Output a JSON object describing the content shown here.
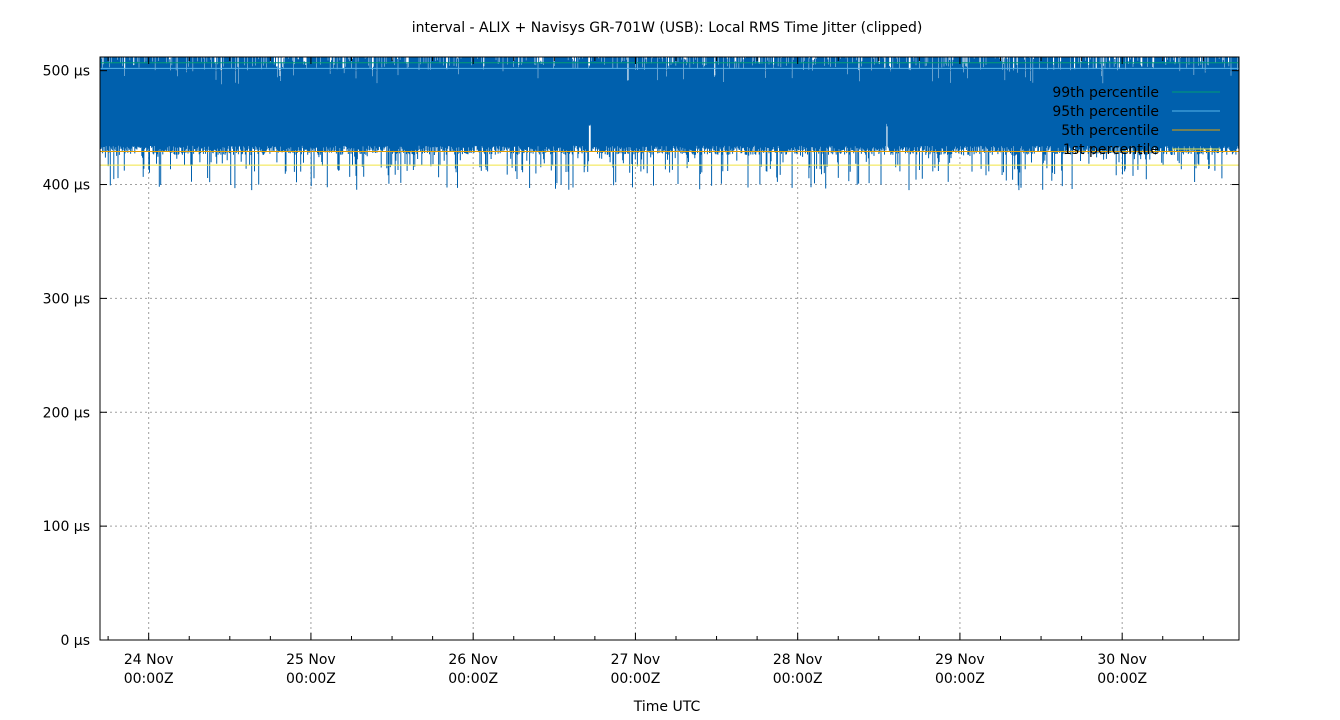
{
  "chart_data": {
    "type": "line",
    "title": "interval - ALIX + Navisys GR-701W (USB): Local RMS Time Jitter (clipped)",
    "xlabel": "Time UTC",
    "ylabel": "",
    "ylim": [
      0,
      512
    ],
    "xlim": [
      -0.3,
      6.72
    ],
    "grid": true,
    "legend_placement": "top-right",
    "y_ticks": [
      {
        "value": 0,
        "label": "0 µs"
      },
      {
        "value": 100,
        "label": "100 µs"
      },
      {
        "value": 200,
        "label": "200 µs"
      },
      {
        "value": 300,
        "label": "300 µs"
      },
      {
        "value": 400,
        "label": "400 µs"
      },
      {
        "value": 500,
        "label": "500 µs"
      }
    ],
    "x_ticks": [
      {
        "value": 0,
        "line1": "24 Nov",
        "line2": "00:00Z"
      },
      {
        "value": 1,
        "line1": "25 Nov",
        "line2": "00:00Z"
      },
      {
        "value": 2,
        "line1": "26 Nov",
        "line2": "00:00Z"
      },
      {
        "value": 3,
        "line1": "27 Nov",
        "line2": "00:00Z"
      },
      {
        "value": 4,
        "line1": "28 Nov",
        "line2": "00:00Z"
      },
      {
        "value": 5,
        "line1": "29 Nov",
        "line2": "00:00Z"
      },
      {
        "value": 6,
        "line1": "30 Nov",
        "line2": "00:00Z"
      }
    ],
    "series": [
      {
        "name": "",
        "kind": "jitter-band",
        "color": "#0060ad",
        "low_typical": 430,
        "low_extreme": 395,
        "high": 512,
        "spike": 453
      },
      {
        "name": "99th percentile",
        "kind": "hline",
        "color": "#009e73",
        "value": 507
      },
      {
        "name": "95th percentile",
        "kind": "hline",
        "color": "#56b4e9",
        "value": 502
      },
      {
        "name": "5th percentile",
        "kind": "hline",
        "color": "#e69f00",
        "value": 429
      },
      {
        "name": "1st percentile",
        "kind": "hline",
        "color": "#f0e442",
        "value": 417
      }
    ]
  }
}
